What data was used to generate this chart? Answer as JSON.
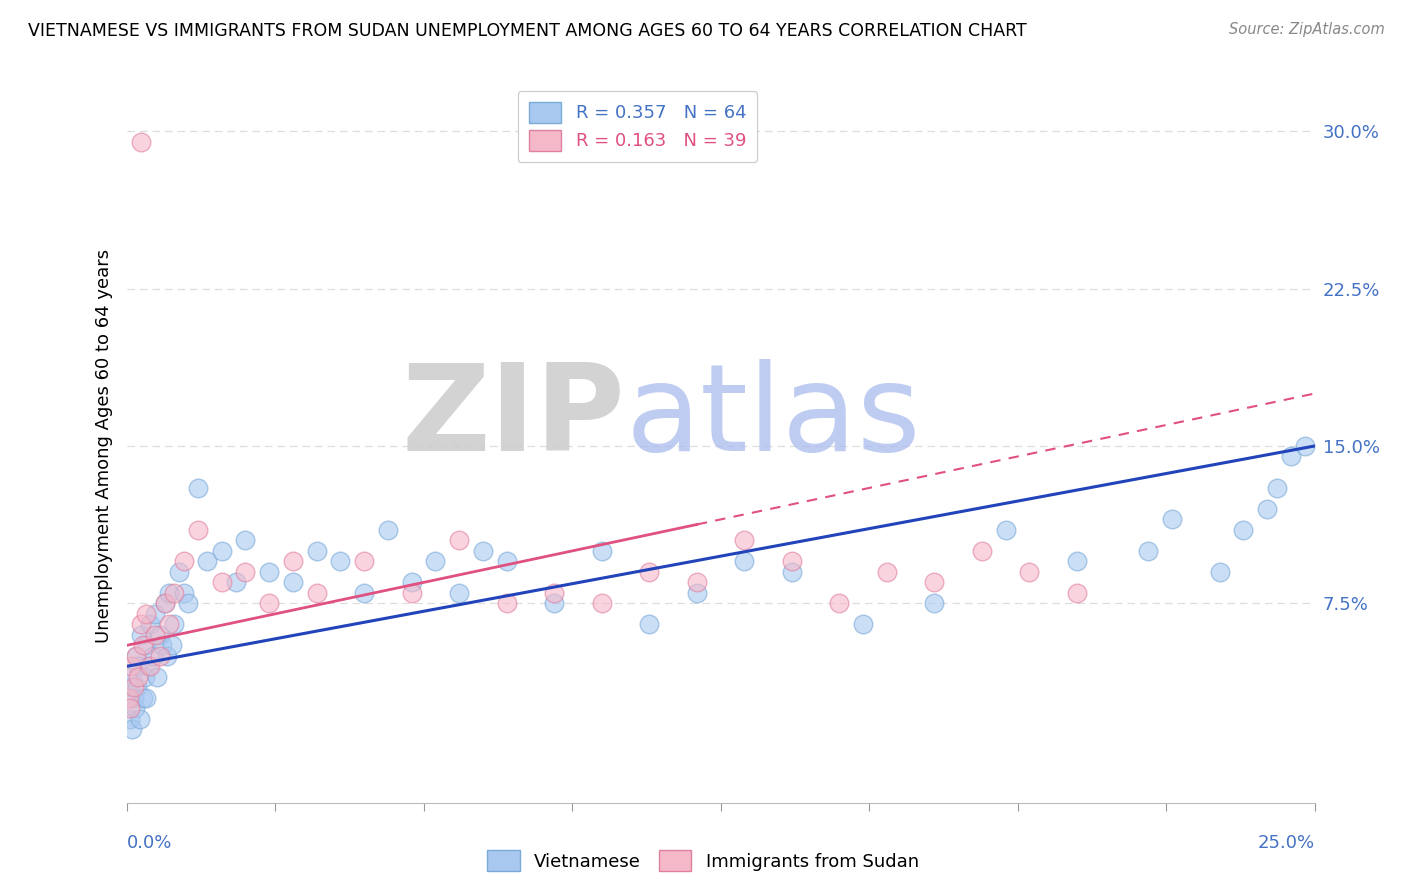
{
  "title": "VIETNAMESE VS IMMIGRANTS FROM SUDAN UNEMPLOYMENT AMONG AGES 60 TO 64 YEARS CORRELATION CHART",
  "source": "Source: ZipAtlas.com",
  "ylabel": "Unemployment Among Ages 60 to 64 years",
  "xlim": [
    0.0,
    25.0
  ],
  "ylim": [
    -2.0,
    32.0
  ],
  "yticks": [
    0.0,
    7.5,
    15.0,
    22.5,
    30.0
  ],
  "ytick_labels": [
    "",
    "7.5%",
    "15.0%",
    "22.5%",
    "30.0%"
  ],
  "series1_name": "Vietnamese",
  "series1_color": "#a8c8f0",
  "series1_edge_color": "#7aaad8",
  "series1_line_color": "#2244bb",
  "series2_name": "Immigrants from Sudan",
  "series2_color": "#f5b8c8",
  "series2_edge_color": "#e080a0",
  "series2_line_color": "#e05080",
  "watermark_zip": "ZIP",
  "watermark_atlas": "atlas",
  "watermark_zip_color": "#cccccc",
  "watermark_atlas_color": "#aabbdd",
  "background_color": "#ffffff",
  "grid_color": "#dddddd",
  "title_fontsize": 12.5,
  "axis_fontsize": 13,
  "legend_fontsize": 13,
  "viet_x": [
    0.05,
    0.08,
    0.1,
    0.12,
    0.15,
    0.18,
    0.2,
    0.22,
    0.25,
    0.28,
    0.3,
    0.35,
    0.38,
    0.4,
    0.42,
    0.45,
    0.5,
    0.55,
    0.6,
    0.65,
    0.7,
    0.75,
    0.8,
    0.85,
    0.9,
    0.95,
    1.0,
    1.1,
    1.2,
    1.3,
    1.5,
    1.7,
    2.0,
    2.3,
    2.5,
    3.0,
    3.5,
    4.0,
    4.5,
    5.0,
    5.5,
    6.0,
    6.5,
    7.0,
    7.5,
    8.0,
    9.0,
    10.0,
    11.0,
    12.0,
    13.0,
    14.0,
    15.5,
    17.0,
    18.5,
    20.0,
    21.5,
    22.0,
    23.0,
    23.5,
    24.0,
    24.2,
    24.5,
    24.8
  ],
  "viet_y": [
    3.5,
    2.0,
    4.0,
    1.5,
    3.0,
    2.5,
    5.0,
    3.5,
    4.5,
    2.0,
    6.0,
    3.0,
    4.0,
    5.5,
    3.0,
    4.5,
    6.5,
    5.0,
    7.0,
    4.0,
    6.0,
    5.5,
    7.5,
    5.0,
    8.0,
    5.5,
    6.5,
    9.0,
    8.0,
    7.5,
    13.0,
    9.5,
    10.0,
    8.5,
    10.5,
    9.0,
    8.5,
    10.0,
    9.5,
    8.0,
    11.0,
    8.5,
    9.5,
    8.0,
    10.0,
    9.5,
    7.5,
    10.0,
    6.5,
    8.0,
    9.5,
    9.0,
    6.5,
    7.5,
    11.0,
    9.5,
    10.0,
    11.5,
    9.0,
    11.0,
    12.0,
    13.0,
    14.5,
    15.0
  ],
  "sudan_x": [
    0.05,
    0.08,
    0.1,
    0.15,
    0.2,
    0.25,
    0.3,
    0.35,
    0.4,
    0.5,
    0.6,
    0.7,
    0.8,
    0.9,
    1.0,
    1.2,
    1.5,
    2.0,
    2.5,
    3.0,
    3.5,
    4.0,
    5.0,
    6.0,
    7.0,
    8.0,
    9.0,
    10.0,
    11.0,
    12.0,
    13.0,
    14.0,
    15.0,
    16.0,
    17.0,
    18.0,
    19.0,
    20.0,
    0.3
  ],
  "sudan_y": [
    3.0,
    2.5,
    4.5,
    3.5,
    5.0,
    4.0,
    6.5,
    5.5,
    7.0,
    4.5,
    6.0,
    5.0,
    7.5,
    6.5,
    8.0,
    9.5,
    11.0,
    8.5,
    9.0,
    7.5,
    9.5,
    8.0,
    9.5,
    8.0,
    10.5,
    7.5,
    8.0,
    7.5,
    9.0,
    8.5,
    10.5,
    9.5,
    7.5,
    9.0,
    8.5,
    10.0,
    9.0,
    8.0,
    29.5
  ],
  "line1_x0": 0.0,
  "line1_y0": 4.5,
  "line1_x1": 25.0,
  "line1_y1": 15.0,
  "line2_x0": 0.0,
  "line2_y0": 5.5,
  "line2_x1": 25.0,
  "line2_y1": 17.5
}
